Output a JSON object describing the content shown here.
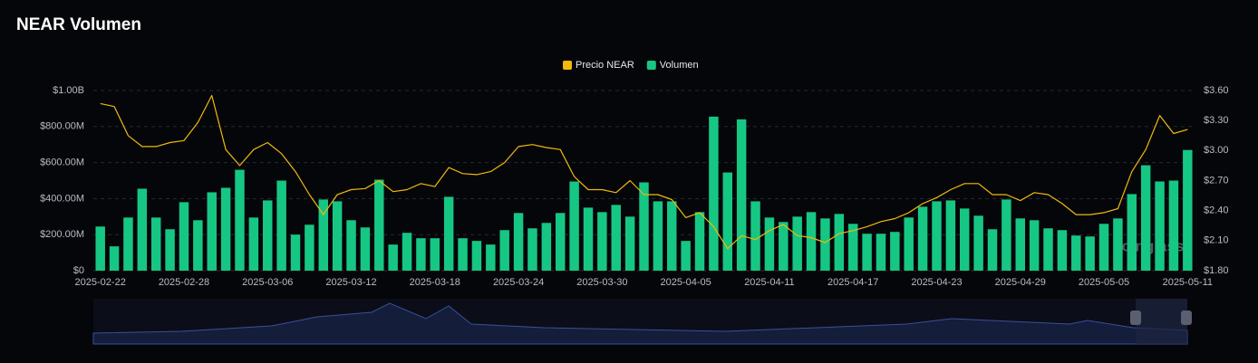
{
  "chart_data": {
    "type": "bar",
    "title": "NEAR Volumen",
    "watermark": "coinglass",
    "legend": "top",
    "grid": true,
    "categories": [
      "2025-02-22",
      null,
      null,
      null,
      null,
      null,
      "2025-02-28",
      null,
      null,
      null,
      null,
      null,
      "2025-03-06",
      null,
      null,
      null,
      null,
      null,
      "2025-03-12",
      null,
      null,
      null,
      null,
      null,
      "2025-03-18",
      null,
      null,
      null,
      null,
      null,
      "2025-03-24",
      null,
      null,
      null,
      null,
      null,
      "2025-03-30",
      null,
      null,
      null,
      null,
      null,
      "2025-04-05",
      null,
      null,
      null,
      null,
      null,
      "2025-04-11",
      null,
      null,
      null,
      null,
      null,
      "2025-04-17",
      null,
      null,
      null,
      null,
      null,
      "2025-04-23",
      null,
      null,
      null,
      null,
      null,
      "2025-04-29",
      null,
      null,
      null,
      null,
      null,
      "2025-05-05",
      null,
      null,
      null,
      null,
      null,
      "2025-05-11"
    ],
    "series": [
      {
        "name": "Precio NEAR",
        "type": "line",
        "axis": "y2",
        "color": "#f0b90b",
        "values": [
          3.47,
          3.44,
          3.15,
          3.04,
          3.04,
          3.08,
          3.1,
          3.28,
          3.55,
          3.01,
          2.85,
          3.01,
          3.08,
          2.97,
          2.79,
          2.56,
          2.36,
          2.56,
          2.61,
          2.62,
          2.7,
          2.59,
          2.61,
          2.67,
          2.64,
          2.83,
          2.77,
          2.76,
          2.79,
          2.88,
          3.04,
          3.06,
          3.03,
          3.01,
          2.74,
          2.61,
          2.61,
          2.58,
          2.7,
          2.56,
          2.56,
          2.51,
          2.33,
          2.38,
          2.24,
          2.02,
          2.15,
          2.11,
          2.2,
          2.26,
          2.15,
          2.13,
          2.08,
          2.17,
          2.2,
          2.24,
          2.29,
          2.32,
          2.38,
          2.47,
          2.53,
          2.61,
          2.67,
          2.67,
          2.56,
          2.56,
          2.5,
          2.58,
          2.56,
          2.47,
          2.36,
          2.36,
          2.38,
          2.42,
          2.79,
          3.01,
          3.35,
          3.17,
          3.21
        ]
      },
      {
        "name": "Volumen",
        "type": "bar",
        "color": "#16c784",
        "values": [
          245000000,
          135000000,
          295000000,
          455000000,
          295000000,
          230000000,
          380000000,
          280000000,
          435000000,
          460000000,
          560000000,
          295000000,
          390000000,
          500000000,
          200000000,
          255000000,
          395000000,
          385000000,
          280000000,
          240000000,
          505000000,
          145000000,
          210000000,
          180000000,
          180000000,
          410000000,
          180000000,
          165000000,
          145000000,
          225000000,
          320000000,
          235000000,
          265000000,
          320000000,
          495000000,
          350000000,
          325000000,
          365000000,
          300000000,
          490000000,
          385000000,
          385000000,
          165000000,
          325000000,
          855000000,
          545000000,
          840000000,
          385000000,
          295000000,
          270000000,
          300000000,
          325000000,
          290000000,
          315000000,
          260000000,
          205000000,
          205000000,
          215000000,
          295000000,
          355000000,
          385000000,
          390000000,
          345000000,
          305000000,
          230000000,
          395000000,
          290000000,
          280000000,
          235000000,
          225000000,
          195000000,
          190000000,
          260000000,
          290000000,
          425000000,
          585000000,
          495000000,
          500000000,
          670000000
        ]
      }
    ],
    "ylim": [
      0,
      1000000000
    ],
    "yticks": [
      {
        "value": 0,
        "label": "$0"
      },
      {
        "value": 200000000,
        "label": "$200.00M"
      },
      {
        "value": 400000000,
        "label": "$400.00M"
      },
      {
        "value": 600000000,
        "label": "$600.00M"
      },
      {
        "value": 800000000,
        "label": "$800.00M"
      },
      {
        "value": 1000000000,
        "label": "$1.00B"
      }
    ],
    "y2lim": [
      1.8,
      3.6
    ],
    "y2ticks": [
      {
        "value": 1.8,
        "label": "$1.80"
      },
      {
        "value": 2.1,
        "label": "$2.10"
      },
      {
        "value": 2.4,
        "label": "$2.40"
      },
      {
        "value": 2.7,
        "label": "$2.70"
      },
      {
        "value": 3.0,
        "label": "$3.00"
      },
      {
        "value": 3.3,
        "label": "$3.30"
      },
      {
        "value": 3.6,
        "label": "$3.60"
      }
    ]
  }
}
